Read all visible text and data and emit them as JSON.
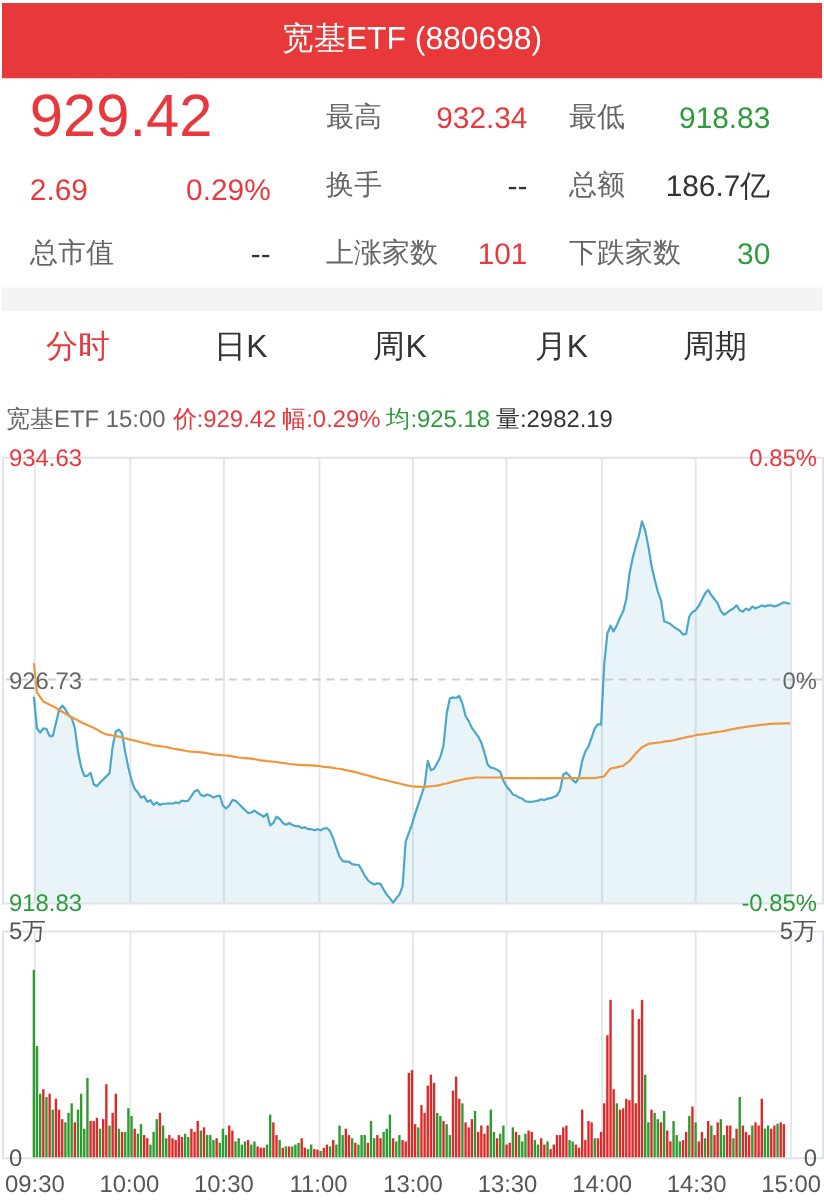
{
  "chart_data": [
    {
      "type": "other",
      "title": "宽基ETF (880698)",
      "annotations": [
        "929.42",
        "2.69",
        "0.29%",
        "最高",
        "932.34",
        "最低",
        "918.83",
        "换手",
        "--",
        "总额",
        "186.7亿",
        "总市值",
        "--",
        "上涨家数",
        "101",
        "下跌家数",
        "30",
        "分时",
        "日K",
        "周K",
        "月K",
        "周期"
      ]
    },
    {
      "type": "line",
      "annotations": [
        "宽基ETF 15:00",
        "价:929.42",
        "幅:0.29%",
        "均:925.18",
        "量:2982.19"
      ],
      "categories": [
        null,
        null,
        null,
        null,
        null,
        null,
        null,
        null,
        null,
        null,
        null,
        null,
        null,
        null,
        null,
        null,
        null,
        null,
        null,
        null,
        null,
        null,
        null,
        null,
        null,
        null,
        null,
        null,
        null,
        null,
        null,
        null,
        null,
        null,
        null,
        null,
        null,
        null,
        null,
        null,
        null,
        null,
        null,
        null,
        null,
        null,
        null,
        null,
        null,
        null,
        null,
        null,
        null,
        null,
        null,
        null,
        null,
        null,
        null,
        null,
        null,
        null,
        null,
        null,
        null,
        null,
        null,
        null,
        null,
        null,
        null,
        null,
        null,
        null,
        null,
        null,
        null,
        null,
        null,
        null,
        null,
        null,
        null,
        null,
        null,
        null,
        null,
        null,
        null,
        null,
        null,
        null,
        null,
        null,
        null,
        null,
        null,
        null,
        null,
        null,
        null,
        null,
        null,
        null,
        null,
        null,
        null,
        null,
        null,
        null,
        null,
        null,
        null,
        null,
        null,
        null,
        null,
        null,
        null,
        null,
        null,
        null,
        null,
        null,
        null,
        null,
        null,
        null,
        null,
        null,
        null,
        null,
        null,
        null,
        null,
        null,
        null,
        null,
        null,
        null,
        null,
        null,
        null,
        null,
        null,
        null,
        null,
        null,
        null,
        null,
        null,
        null,
        null,
        null,
        null,
        null,
        null,
        null,
        null,
        null,
        null,
        null,
        null,
        null,
        null,
        null,
        null,
        null,
        null,
        null,
        null,
        null,
        null,
        null,
        null,
        null,
        null,
        null,
        null,
        null,
        null,
        null,
        null,
        null,
        null,
        null,
        null,
        null,
        null,
        null,
        null,
        null,
        null,
        null,
        null,
        null,
        null,
        null,
        null,
        null,
        null,
        null,
        null,
        null,
        null,
        null,
        null,
        null,
        null,
        null,
        null,
        null,
        null,
        null,
        null,
        null,
        null,
        null,
        null,
        null,
        null,
        null,
        null,
        null,
        null,
        null,
        null,
        null,
        null,
        null,
        null,
        null,
        null,
        null,
        null,
        null,
        null,
        null,
        null,
        null,
        null
      ],
      "ylim": [
        918.83,
        934.63
      ],
      "yticks": [
        918.83,
        926.73,
        934.63
      ],
      "y2lim": [
        -0.85,
        0.85
      ],
      "y2ticks": [
        {
          "value": -0.85,
          "label": "-0.85%"
        },
        {
          "value": 0,
          "label": "0%"
        },
        {
          "value": 0.85,
          "label": "0.85%"
        }
      ],
      "tick_labels": "y",
      "grid": "x",
      "ref_lines": [
        {
          "axis": "y",
          "value": 926.73,
          "line_style": "dashed",
          "color": "#cfcfcf"
        }
      ],
      "series": [
        {
          "type": "area",
          "color": "#4aa7c9",
          "values": [
            926.12,
            925.0,
            924.85,
            925.0,
            924.98,
            924.73,
            924.73,
            925.18,
            925.66,
            925.81,
            925.68,
            925.48,
            925.37,
            925.02,
            924.18,
            923.63,
            923.32,
            923.32,
            923.43,
            923.02,
            922.95,
            923.08,
            923.19,
            923.3,
            923.41,
            924.36,
            924.89,
            924.96,
            924.82,
            924.16,
            923.61,
            923.17,
            922.86,
            922.73,
            922.55,
            922.6,
            922.4,
            922.46,
            922.29,
            922.38,
            922.29,
            922.33,
            922.33,
            922.35,
            922.33,
            922.38,
            922.35,
            922.44,
            922.42,
            922.44,
            922.6,
            922.77,
            922.82,
            922.64,
            922.6,
            922.66,
            922.62,
            922.55,
            922.6,
            922.62,
            922.27,
            922.16,
            922.27,
            922.46,
            922.44,
            922.33,
            922.22,
            922.11,
            922.0,
            922.02,
            922.09,
            922.0,
            921.94,
            921.87,
            921.98,
            921.56,
            921.65,
            921.87,
            921.8,
            921.65,
            921.58,
            921.65,
            921.58,
            921.54,
            921.54,
            921.47,
            921.5,
            921.43,
            921.43,
            921.39,
            921.43,
            921.39,
            921.45,
            921.47,
            921.36,
            921.1,
            920.77,
            920.46,
            920.3,
            920.28,
            920.28,
            920.19,
            920.17,
            920.17,
            920.0,
            919.78,
            919.62,
            919.53,
            919.47,
            919.51,
            919.49,
            919.29,
            919.11,
            918.98,
            918.83,
            918.98,
            919.11,
            919.4,
            921.0,
            921.3,
            921.6,
            921.98,
            922.31,
            922.64,
            922.97,
            923.85,
            923.52,
            923.57,
            923.77,
            923.99,
            924.4,
            925.51,
            926.06,
            926.1,
            926.08,
            926.15,
            925.88,
            925.44,
            925.26,
            925.02,
            924.87,
            924.71,
            924.49,
            924.14,
            923.72,
            923.61,
            923.59,
            923.54,
            923.46,
            923.15,
            922.95,
            922.82,
            922.66,
            922.62,
            922.55,
            922.51,
            922.42,
            922.4,
            922.4,
            922.42,
            922.44,
            922.49,
            922.46,
            922.51,
            922.53,
            922.57,
            922.62,
            922.82,
            923.37,
            923.43,
            923.32,
            923.17,
            923.08,
            923.26,
            923.85,
            924.18,
            924.36,
            924.67,
            925.0,
            925.15,
            925.13,
            927.27,
            928.37,
            928.64,
            928.44,
            928.66,
            928.92,
            929.14,
            929.58,
            930.47,
            931.02,
            931.46,
            931.83,
            932.34,
            932.01,
            931.46,
            930.77,
            930.29,
            929.85,
            929.54,
            928.81,
            928.75,
            928.7,
            928.61,
            928.53,
            928.46,
            928.33,
            928.35,
            928.97,
            929.12,
            929.19,
            929.34,
            929.56,
            929.78,
            929.91,
            929.72,
            929.58,
            929.43,
            929.16,
            929.03,
            929.1,
            929.19,
            929.25,
            929.36,
            929.19,
            929.14,
            929.25,
            929.19,
            929.32,
            929.25,
            929.3,
            929.36,
            929.32,
            929.36,
            929.36,
            929.32,
            929.36,
            929.41,
            929.47,
            929.44,
            929.42
          ]
        },
        {
          "type": "line",
          "color": "#f0963a",
          "values": [
            927.31,
            926.28,
            926.11,
            925.95,
            925.9,
            925.84,
            925.79,
            925.73,
            925.66,
            925.59,
            925.53,
            925.46,
            925.4,
            925.34,
            925.28,
            925.22,
            925.17,
            925.12,
            925.07,
            925.02,
            924.96,
            924.89,
            924.83,
            924.79,
            924.77,
            924.75,
            924.73,
            924.71,
            924.68,
            924.65,
            924.62,
            924.59,
            924.57,
            924.54,
            924.51,
            924.48,
            924.46,
            924.43,
            924.4,
            924.39,
            924.37,
            924.36,
            924.34,
            924.32,
            924.29,
            924.27,
            924.25,
            924.23,
            924.21,
            924.19,
            924.18,
            924.17,
            924.16,
            924.15,
            924.14,
            924.12,
            924.1,
            924.08,
            924.07,
            924.06,
            924.05,
            924.04,
            924.03,
            924.01,
            923.99,
            923.97,
            923.96,
            923.95,
            923.94,
            923.93,
            923.91,
            923.89,
            923.87,
            923.86,
            923.84,
            923.83,
            923.82,
            923.81,
            923.79,
            923.78,
            923.76,
            923.74,
            923.73,
            923.72,
            923.71,
            923.7,
            923.7,
            923.69,
            923.69,
            923.68,
            923.67,
            923.66,
            923.64,
            923.63,
            923.62,
            923.6,
            923.58,
            923.57,
            923.55,
            923.52,
            923.5,
            923.48,
            923.45,
            923.42,
            923.39,
            923.36,
            923.33,
            923.3,
            923.27,
            923.24,
            923.21,
            923.18,
            923.16,
            923.13,
            923.1,
            923.07,
            923.05,
            923.02,
            922.99,
            922.97,
            922.95,
            922.94,
            922.94,
            922.93,
            922.93,
            922.94,
            922.95,
            922.96,
            922.97,
            923.0,
            923.03,
            923.05,
            923.08,
            923.11,
            923.14,
            923.16,
            923.19,
            923.21,
            923.23,
            923.24,
            923.26,
            923.26,
            923.26,
            923.26,
            923.26,
            923.26,
            923.26,
            923.26,
            923.26,
            923.24,
            923.24,
            923.24,
            923.24,
            923.24,
            923.24,
            923.24,
            923.24,
            923.24,
            923.24,
            923.24,
            923.24,
            923.24,
            923.24,
            923.24,
            923.24,
            923.24,
            923.24,
            923.24,
            923.24,
            923.24,
            923.24,
            923.24,
            923.24,
            923.24,
            923.24,
            923.24,
            923.24,
            923.24,
            923.24,
            923.26,
            923.28,
            923.3,
            923.45,
            923.58,
            923.6,
            923.62,
            923.65,
            923.67,
            923.76,
            923.84,
            923.98,
            924.11,
            924.23,
            924.33,
            924.39,
            924.45,
            924.47,
            924.48,
            924.5,
            924.51,
            924.53,
            924.55,
            924.56,
            924.58,
            924.61,
            924.64,
            924.66,
            924.69,
            924.71,
            924.73,
            924.76,
            924.78,
            924.79,
            924.81,
            924.82,
            924.84,
            924.86,
            924.88,
            924.89,
            924.91,
            924.93,
            924.96,
            924.98,
            925.0,
            925.02,
            925.04,
            925.06,
            925.07,
            925.09,
            925.1,
            925.12,
            925.13,
            925.14,
            925.15,
            925.16,
            925.17,
            925.17,
            925.17,
            925.18,
            925.18,
            925.18
          ]
        }
      ]
    },
    {
      "type": "bar",
      "categories": [
        "09:30",
        null,
        null,
        null,
        null,
        null,
        null,
        null,
        null,
        null,
        null,
        null,
        null,
        null,
        null,
        null,
        null,
        null,
        null,
        null,
        null,
        null,
        null,
        null,
        null,
        null,
        null,
        null,
        null,
        null,
        "10:00",
        null,
        null,
        null,
        null,
        null,
        null,
        null,
        null,
        null,
        null,
        null,
        null,
        null,
        null,
        null,
        null,
        null,
        null,
        null,
        null,
        null,
        null,
        null,
        null,
        null,
        null,
        null,
        null,
        null,
        "10:30",
        null,
        null,
        null,
        null,
        null,
        null,
        null,
        null,
        null,
        null,
        null,
        null,
        null,
        null,
        null,
        null,
        null,
        null,
        null,
        null,
        null,
        null,
        null,
        null,
        null,
        null,
        null,
        null,
        null,
        "11:00",
        null,
        null,
        null,
        null,
        null,
        null,
        null,
        null,
        null,
        null,
        null,
        null,
        null,
        null,
        null,
        null,
        null,
        null,
        null,
        null,
        null,
        null,
        null,
        null,
        null,
        null,
        null,
        null,
        null,
        "13:00",
        null,
        null,
        null,
        null,
        null,
        null,
        null,
        null,
        null,
        null,
        null,
        null,
        null,
        null,
        null,
        null,
        null,
        null,
        null,
        null,
        null,
        null,
        null,
        null,
        null,
        null,
        null,
        null,
        null,
        "13:30",
        null,
        null,
        null,
        null,
        null,
        null,
        null,
        null,
        null,
        null,
        null,
        null,
        null,
        null,
        null,
        null,
        null,
        null,
        null,
        null,
        null,
        null,
        null,
        null,
        null,
        null,
        null,
        null,
        null,
        "14:00",
        null,
        null,
        null,
        null,
        null,
        null,
        null,
        null,
        null,
        null,
        null,
        null,
        null,
        null,
        null,
        null,
        null,
        null,
        null,
        null,
        null,
        null,
        null,
        null,
        null,
        null,
        null,
        null,
        null,
        "14:30",
        null,
        null,
        null,
        null,
        null,
        null,
        null,
        null,
        null,
        null,
        null,
        null,
        null,
        null,
        null,
        null,
        null,
        null,
        null,
        null,
        null,
        null,
        null,
        null,
        null,
        null,
        null,
        null,
        null,
        "15:00"
      ],
      "ylim": [
        0,
        5
      ],
      "yticks": [
        0,
        {
          "value": 5,
          "label": "5万"
        }
      ],
      "y2lim": [
        0,
        5
      ],
      "y2ticks": [
        0,
        {
          "value": 5,
          "label": "5万"
        }
      ],
      "grid": "x",
      "values": [
        4.13,
        2.45,
        1.4,
        1.5,
        1.33,
        1.4,
        1.05,
        1.29,
        1.05,
        0.84,
        0.77,
        0.98,
        1.19,
        0.77,
        1.05,
        1.4,
        0.63,
        1.75,
        0.8,
        0.8,
        0.87,
        0.63,
        0.84,
        1.61,
        0.7,
        0.98,
        1.4,
        0.63,
        0.56,
        0.56,
        1.08,
        0.91,
        0.63,
        0.52,
        0.73,
        0.49,
        0.42,
        0.28,
        0.56,
        0.84,
        0.98,
        0.7,
        0.42,
        0.49,
        0.42,
        0.38,
        0.49,
        0.45,
        0.52,
        0.45,
        0.63,
        0.56,
        0.8,
        0.59,
        0.66,
        0.49,
        0.49,
        0.38,
        0.42,
        0.32,
        0.63,
        0.49,
        0.7,
        0.59,
        0.35,
        0.42,
        0.28,
        0.35,
        0.38,
        0.28,
        0.35,
        0.24,
        0.21,
        0.21,
        0.28,
        0.94,
        0.77,
        0.49,
        0.38,
        0.21,
        0.24,
        0.24,
        0.24,
        0.28,
        0.32,
        0.42,
        0.21,
        0.18,
        0.28,
        0.18,
        0.17,
        0.14,
        0.21,
        0.28,
        0.24,
        0.38,
        0.28,
        0.7,
        0.49,
        0.63,
        0.49,
        0.42,
        0.32,
        0.28,
        0.49,
        0.49,
        0.32,
        0.8,
        0.42,
        0.49,
        0.42,
        0.56,
        0.63,
        0.94,
        0.42,
        0.35,
        0.49,
        0.38,
        0.35,
        1.86,
        1.92,
        0.73,
        0.66,
        1.15,
        0.98,
        1.58,
        1.82,
        1.64,
        0.98,
        0.91,
        0.8,
        0.73,
        0.49,
        1.47,
        1.78,
        1.29,
        1.19,
        0.77,
        0.66,
        0.84,
        1.02,
        0.56,
        0.7,
        0.52,
        0.7,
        1.05,
        0.56,
        0.42,
        0.52,
        0.7,
        0.28,
        0.32,
        0.66,
        0.56,
        0.49,
        0.35,
        0.52,
        0.59,
        0.56,
        0.38,
        0.28,
        0.42,
        0.28,
        0.35,
        0.18,
        0.28,
        0.49,
        0.49,
        0.66,
        0.7,
        0.38,
        0.35,
        0.28,
        0.21,
        1.05,
        0.38,
        0.8,
        0.77,
        0.42,
        0.42,
        0.56,
        1.19,
        2.69,
        3.47,
        1.5,
        1.19,
        1.05,
        1.08,
        1.29,
        1.26,
        3.26,
        1.19,
        3.05,
        3.47,
        1.82,
        0.77,
        1.05,
        0.98,
        0.84,
        0.77,
        1.02,
        0.59,
        0.35,
        0.8,
        0.49,
        0.35,
        0.38,
        0.56,
        0.91,
        1.12,
        0.77,
        0.35,
        0.56,
        0.42,
        0.8,
        0.7,
        0.49,
        0.77,
        0.84,
        0.49,
        0.7,
        0.7,
        0.42,
        0.63,
        1.33,
        0.7,
        0.56,
        0.49,
        0.7,
        0.77,
        0.7,
        1.29,
        0.63,
        0.7,
        0.63,
        0.7,
        0.74,
        0.77,
        0.73,
        null,
        null
      ],
      "colors": [
        "#2f9a2f",
        "#2f9a2f",
        "#2f9a2f",
        "#dc2a2a",
        "#2f9a2f",
        "#dc2a2a",
        "#2f9a2f",
        "#dc2a2a",
        "#dc2a2a",
        "#dc2a2a",
        "#2f9a2f",
        "#2f9a2f",
        "#2f9a2f",
        "#dc2a2a",
        "#2f9a2f",
        "#2f9a2f",
        "#2f9a2f",
        "#2f9a2f",
        "#dc2a2a",
        "#dc2a2a",
        "#dc2a2a",
        "#2f9a2f",
        "#dc2a2a",
        "#dc2a2a",
        "#2f9a2f",
        "#dc2a2a",
        "#dc2a2a",
        "#2f9a2f",
        "#dc2a2a",
        "#2f9a2f",
        "#2f9a2f",
        "#2f9a2f",
        "#dc2a2a",
        "#2f9a2f",
        "#2f9a2f",
        "#dc2a2a",
        "#dc2a2a",
        "#2f9a2f",
        "#2f9a2f",
        "#2f9a2f",
        "#dc2a2a",
        "#2f9a2f",
        "#2f9a2f",
        "#dc2a2a",
        "#dc2a2a",
        "#dc2a2a",
        "#dc2a2a",
        "#dc2a2a",
        "#2f9a2f",
        "#2f9a2f",
        "#dc2a2a",
        "#dc2a2a",
        "#dc2a2a",
        "#2f9a2f",
        "#dc2a2a",
        "#2f9a2f",
        "#2f9a2f",
        "#2f9a2f",
        "#dc2a2a",
        "#2f9a2f",
        "#2f9a2f",
        "#2f9a2f",
        "#dc2a2a",
        "#dc2a2a",
        "#2f9a2f",
        "#2f9a2f",
        "#2f9a2f",
        "#2f9a2f",
        "#dc2a2a",
        "#2f9a2f",
        "#2f9a2f",
        "#dc2a2a",
        "#dc2a2a",
        "#dc2a2a",
        "#2f9a2f",
        "#2f9a2f",
        "#dc2a2a",
        "#dc2a2a",
        "#2f9a2f",
        "#dc2a2a",
        "#2f9a2f",
        "#dc2a2a",
        "#2f9a2f",
        "#2f9a2f",
        "#2f9a2f",
        "#dc2a2a",
        "#dc2a2a",
        "#2f9a2f",
        "#2f9a2f",
        "#dc2a2a",
        "#dc2a2a",
        "#2f9a2f",
        "#dc2a2a",
        "#dc2a2a",
        "#2f9a2f",
        "#dc2a2a",
        "#2f9a2f",
        "#2f9a2f",
        "#2f9a2f",
        "#dc2a2a",
        "#dc2a2a",
        "#2f9a2f",
        "#dc2a2a",
        "#2f9a2f",
        "#2f9a2f",
        "#2f9a2f",
        "#dc2a2a",
        "#2f9a2f",
        "#2f9a2f",
        "#dc2a2a",
        "#dc2a2a",
        "#2f9a2f",
        "#2f9a2f",
        "#2f9a2f",
        "#dc2a2a",
        "#2f9a2f",
        "#2f9a2f",
        "#dc2a2a",
        "#dc2a2a",
        "#dc2a2a",
        "#dc2a2a",
        "#dc2a2a",
        "#2f9a2f",
        "#dc2a2a",
        "#dc2a2a",
        "#dc2a2a",
        "#dc2a2a",
        "#dc2a2a",
        "#2f9a2f",
        "#2f9a2f",
        "#dc2a2a",
        "#2f9a2f",
        "#2f9a2f",
        "#dc2a2a",
        "#dc2a2a",
        "#dc2a2a",
        "#2f9a2f",
        "#dc2a2a",
        "#dc2a2a",
        "#dc2a2a",
        "#2f9a2f",
        "#dc2a2a",
        "#dc2a2a",
        "#dc2a2a",
        "#dc2a2a",
        "#2f9a2f",
        "#2f9a2f",
        "#dc2a2a",
        "#2f9a2f",
        "#2f9a2f",
        "#dc2a2a",
        "#dc2a2a",
        "#2f9a2f",
        "#dc2a2a",
        "#2f9a2f",
        "#2f9a2f",
        "#2f9a2f",
        "#dc2a2a",
        "#dc2a2a",
        "#2f9a2f",
        "#2f9a2f",
        "#dc2a2a",
        "#dc2a2a",
        "#2f9a2f",
        "#dc2a2a",
        "#dc2a2a",
        "#dc2a2a",
        "#dc2a2a",
        "#dc2a2a",
        "#dc2a2a",
        "#2f9a2f",
        "#2f9a2f",
        "#dc2a2a",
        "#dc2a2a",
        "#dc2a2a",
        "#dc2a2a",
        "#dc2a2a",
        "#dc2a2a",
        "#2f9a2f",
        "#dc2a2a",
        "#dc2a2a",
        "#dc2a2a",
        "#dc2a2a",
        "#dc2a2a",
        "#dc2a2a",
        "#2f9a2f",
        "#dc2a2a",
        "#dc2a2a",
        "#dc2a2a",
        "#dc2a2a",
        "#dc2a2a",
        "#dc2a2a",
        "#dc2a2a",
        "#dc2a2a",
        "#2f9a2f",
        "#2f9a2f",
        "#dc2a2a",
        "#2f9a2f",
        "#2f9a2f",
        "#dc2a2a",
        "#2f9a2f",
        "#dc2a2a",
        "#dc2a2a",
        "#2f9a2f",
        "#2f9a2f",
        "#2f9a2f",
        "#dc2a2a",
        "#dc2a2a",
        "#2f9a2f",
        "#dc2a2a",
        "#2f9a2f",
        "#dc2a2a",
        "#dc2a2a",
        "#2f9a2f",
        "#dc2a2a",
        "#2f9a2f",
        "#dc2a2a",
        "#dc2a2a",
        "#2f9a2f",
        "#2f9a2f",
        "#dc2a2a",
        "#dc2a2a",
        "#2f9a2f",
        "#dc2a2a",
        "#2f9a2f",
        "#dc2a2a",
        "#dc2a2a",
        "#dc2a2a",
        "#2f9a2f",
        "#dc2a2a",
        "#dc2a2a",
        "#dc2a2a",
        "#2f9a2f",
        "#2f9a2f",
        "#dc2a2a",
        "#dc2a2a",
        "#2f9a2f",
        "#dc2a2a",
        "#dc2a2a",
        null,
        null
      ]
    }
  ]
}
